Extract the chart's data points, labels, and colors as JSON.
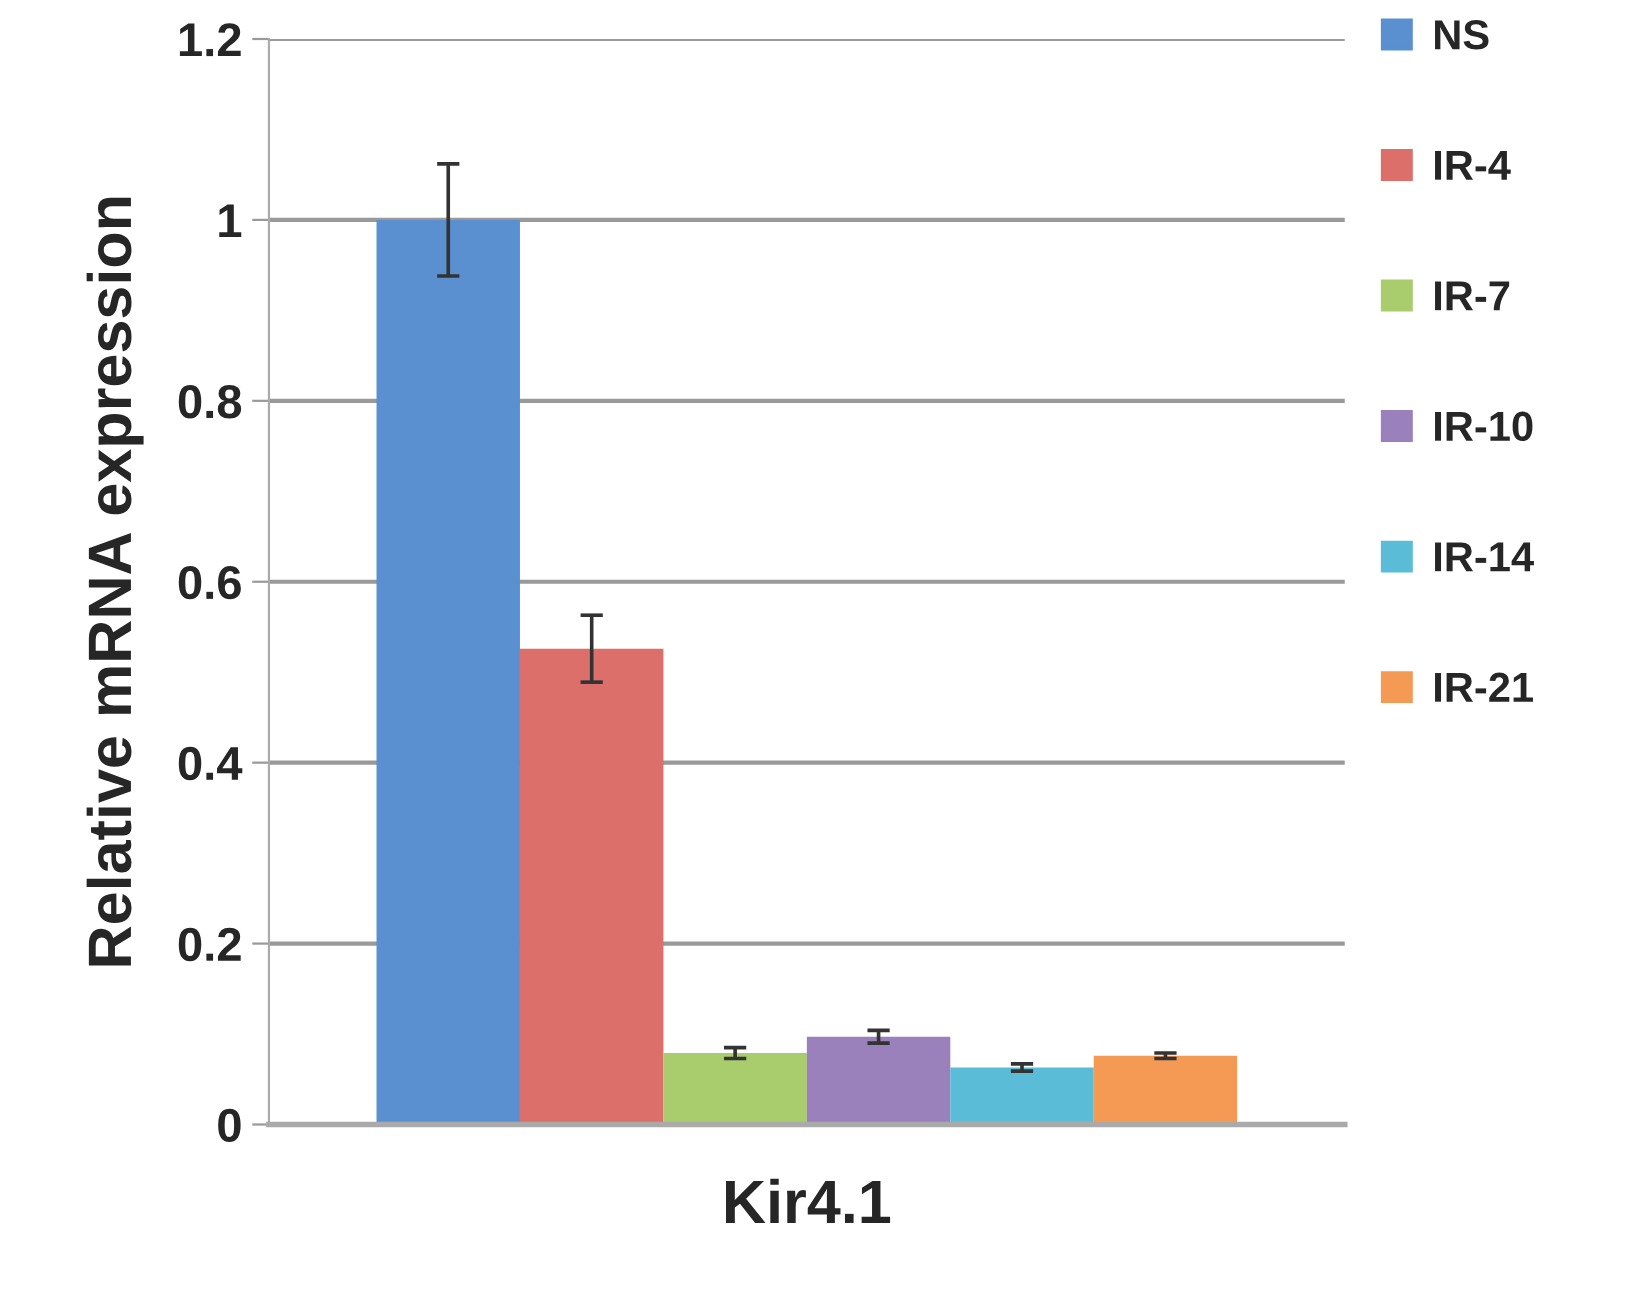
{
  "chart_data": {
    "type": "bar",
    "xlabel": "Kir4.1",
    "ylabel": "Relative mRNA expression",
    "categories": [
      null,
      null,
      null,
      null,
      null,
      null
    ],
    "series": [
      {
        "name": "NS",
        "color": "#5a8fd0",
        "values": [
          1.0,
          null,
          null,
          null,
          null,
          null
        ],
        "errors": [
          0.062,
          null,
          null,
          null,
          null,
          null
        ]
      },
      {
        "name": "IR-4",
        "color": "#dd6f6a",
        "values": [
          null,
          0.526,
          null,
          null,
          null,
          null
        ],
        "errors": [
          null,
          0.037,
          null,
          null,
          null,
          null
        ]
      },
      {
        "name": "IR-7",
        "color": "#a9cc6c",
        "values": [
          null,
          null,
          0.079,
          null,
          null,
          null
        ],
        "errors": [
          null,
          null,
          0.006,
          null,
          null,
          null
        ]
      },
      {
        "name": "IR-10",
        "color": "#9a81bb",
        "values": [
          null,
          null,
          null,
          0.097,
          null,
          null
        ],
        "errors": [
          null,
          null,
          null,
          0.007,
          null,
          null
        ]
      },
      {
        "name": "IR-14",
        "color": "#5bbcd8",
        "values": [
          null,
          null,
          null,
          null,
          0.063,
          null
        ],
        "errors": [
          null,
          null,
          null,
          null,
          0.004,
          null
        ]
      },
      {
        "name": "IR-21",
        "color": "#f59a55",
        "values": [
          null,
          null,
          null,
          null,
          null,
          0.076
        ],
        "errors": [
          null,
          null,
          null,
          null,
          null,
          0.003
        ]
      }
    ],
    "ylim": [
      0,
      1.2
    ],
    "yticks": [
      0,
      0.2,
      0.4,
      0.6,
      0.8,
      1,
      1.2
    ],
    "grid": "y",
    "legend": "right"
  }
}
